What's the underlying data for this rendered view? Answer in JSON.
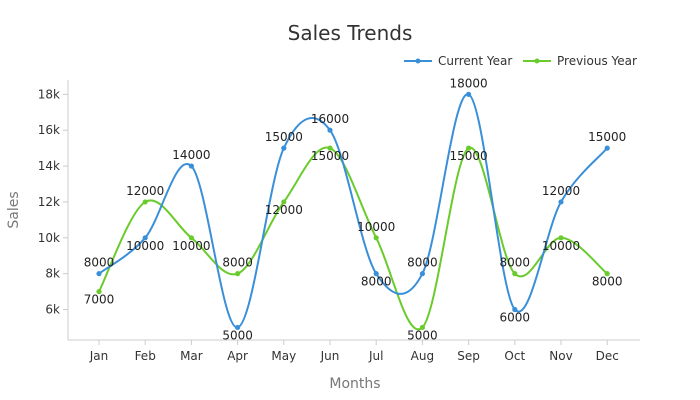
{
  "chart_data": {
    "type": "line",
    "title": "Sales Trends",
    "xlabel": "Months",
    "ylabel": "Sales",
    "categories": [
      "Jan",
      "Feb",
      "Mar",
      "Apr",
      "May",
      "Jun",
      "Jul",
      "Aug",
      "Sep",
      "Oct",
      "Nov",
      "Dec"
    ],
    "ylim": [
      4300,
      18800
    ],
    "yticks": [
      6000,
      8000,
      10000,
      12000,
      14000,
      16000,
      18000
    ],
    "ytick_labels": [
      "6k",
      "8k",
      "10k",
      "12k",
      "14k",
      "16k",
      "18k"
    ],
    "grid": false,
    "legend_position": "top-right",
    "series": [
      {
        "name": "Current Year",
        "color": "#3a8fd9",
        "values": [
          8000,
          10000,
          14000,
          5000,
          15000,
          16000,
          8000,
          8000,
          18000,
          6000,
          12000,
          15000
        ],
        "labels": [
          "8000",
          "10000",
          "14000",
          "5000",
          "15000",
          "16000",
          "8000",
          "8000",
          "18000",
          "6000",
          "12000",
          "15000"
        ]
      },
      {
        "name": "Previous Year",
        "color": "#6acb2c",
        "values": [
          7000,
          12000,
          10000,
          8000,
          12000,
          15000,
          10000,
          5000,
          15000,
          8000,
          10000,
          8000
        ],
        "labels": [
          "7000",
          "12000",
          "10000",
          "8000",
          "12000",
          "15000",
          "10000",
          "5000",
          "15000",
          "8000",
          "10000",
          "8000"
        ]
      }
    ]
  }
}
